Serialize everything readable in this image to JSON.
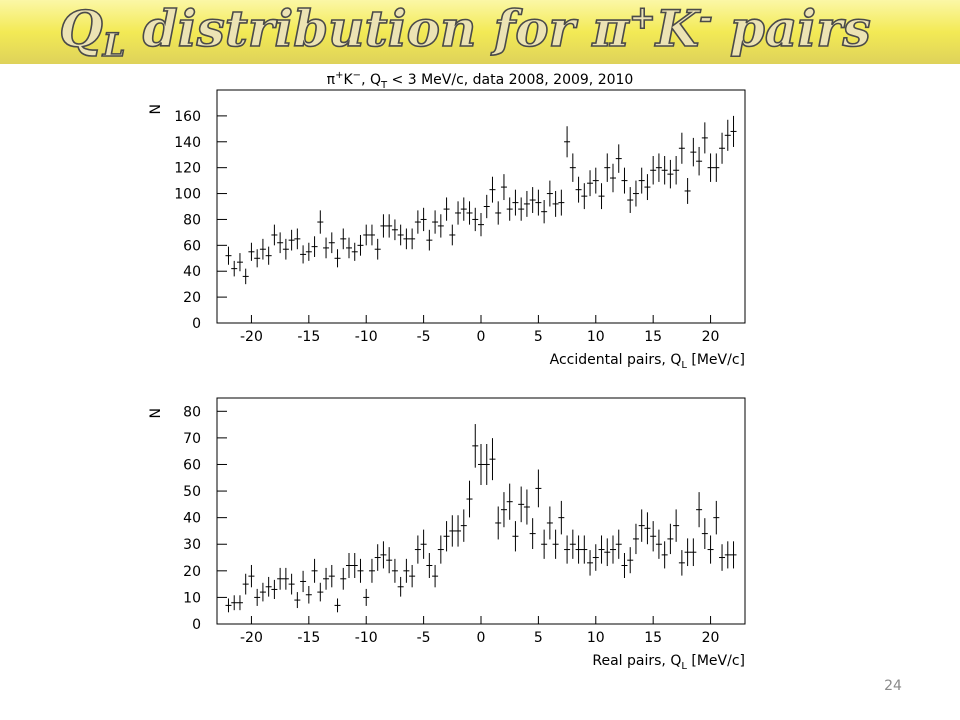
{
  "title_parts": [
    "Q",
    "L",
    " distribution for π",
    "+",
    "K",
    "-",
    " pairs"
  ],
  "page_number": "24",
  "chart_data": [
    {
      "type": "errorbar",
      "subtitle_parts": [
        "π",
        "+",
        "K",
        "−",
        ", Q",
        "T",
        " < 3 MeV/c, data 2008, 2009, 2010"
      ],
      "ylabel": "N",
      "xlabel_parts": [
        "Accidental pairs, Q",
        "L",
        " [MeV/c]"
      ],
      "xlim": [
        -23,
        23
      ],
      "xticks": [
        -20,
        -15,
        -10,
        -5,
        0,
        5,
        10,
        15,
        20
      ],
      "ylim": [
        0,
        180
      ],
      "yticks": [
        0,
        20,
        40,
        60,
        80,
        100,
        120,
        140,
        160
      ],
      "color": "#000000",
      "x": [
        -22,
        -21.5,
        -21,
        -20.5,
        -20,
        -19.5,
        -19,
        -18.5,
        -18,
        -17.5,
        -17,
        -16.5,
        -16,
        -15.5,
        -15,
        -14.5,
        -14,
        -13.5,
        -13,
        -12.5,
        -12,
        -11.5,
        -11,
        -10.5,
        -10,
        -9.5,
        -9,
        -8.5,
        -8,
        -7.5,
        -7,
        -6.5,
        -6,
        -5.5,
        -5,
        -4.5,
        -4,
        -3.5,
        -3,
        -2.5,
        -2,
        -1.5,
        -1,
        -0.5,
        0,
        0.5,
        1,
        1.5,
        2,
        2.5,
        3,
        3.5,
        4,
        4.5,
        5,
        5.5,
        6,
        6.5,
        7,
        7.5,
        8,
        8.5,
        9,
        9.5,
        10,
        10.5,
        11,
        11.5,
        12,
        12.5,
        13,
        13.5,
        14,
        14.5,
        15,
        15.5,
        16,
        16.5,
        17,
        17.5,
        18,
        18.5,
        19,
        19.5,
        20,
        20.5,
        21,
        21.5,
        22
      ],
      "values": [
        52,
        42,
        47,
        36,
        55,
        50,
        57,
        52,
        68,
        62,
        57,
        64,
        65,
        53,
        55,
        59,
        78,
        58,
        62,
        50,
        65,
        58,
        55,
        60,
        68,
        68,
        57,
        75,
        75,
        72,
        68,
        65,
        65,
        78,
        80,
        64,
        78,
        75,
        88,
        68,
        85,
        88,
        85,
        80,
        76,
        90,
        103,
        85,
        105,
        88,
        93,
        88,
        92,
        95,
        93,
        86,
        100,
        92,
        93,
        140,
        120,
        103,
        98,
        108,
        110,
        98,
        120,
        112,
        127,
        110,
        95,
        100,
        110,
        105,
        118,
        120,
        118,
        115,
        118,
        135,
        102,
        132,
        125,
        143,
        120,
        120,
        135,
        145,
        148
      ],
      "errors": [
        7,
        6,
        7,
        6,
        7,
        7,
        8,
        7,
        8,
        8,
        8,
        8,
        8,
        7,
        7,
        8,
        9,
        8,
        8,
        7,
        8,
        8,
        7,
        8,
        8,
        8,
        8,
        9,
        9,
        8,
        8,
        8,
        8,
        9,
        9,
        8,
        9,
        9,
        9,
        8,
        9,
        9,
        9,
        9,
        9,
        9,
        10,
        9,
        10,
        9,
        10,
        9,
        10,
        10,
        10,
        9,
        10,
        10,
        10,
        12,
        11,
        10,
        10,
        10,
        10,
        10,
        11,
        11,
        11,
        10,
        10,
        10,
        10,
        10,
        11,
        11,
        11,
        11,
        11,
        12,
        10,
        11,
        11,
        12,
        11,
        11,
        12,
        12,
        12
      ]
    },
    {
      "type": "errorbar",
      "ylabel": "N",
      "xlabel_parts": [
        "Real pairs, Q",
        "L",
        " [MeV/c]"
      ],
      "xlim": [
        -23,
        23
      ],
      "xticks": [
        -20,
        -15,
        -10,
        -5,
        0,
        5,
        10,
        15,
        20
      ],
      "ylim": [
        0,
        85
      ],
      "yticks": [
        0,
        10,
        20,
        30,
        40,
        50,
        60,
        70,
        80
      ],
      "color": "#000000",
      "x": [
        -22,
        -21.5,
        -21,
        -20.5,
        -20,
        -19.5,
        -19,
        -18.5,
        -18,
        -17.5,
        -17,
        -16.5,
        -16,
        -15.5,
        -15,
        -14.5,
        -14,
        -13.5,
        -13,
        -12.5,
        -12,
        -11.5,
        -11,
        -10.5,
        -10,
        -9.5,
        -9,
        -8.5,
        -8,
        -7.5,
        -7,
        -6.5,
        -6,
        -5.5,
        -5,
        -4.5,
        -4,
        -3.5,
        -3,
        -2.5,
        -2,
        -1.5,
        -1,
        -0.5,
        0,
        0.5,
        1,
        1.5,
        2,
        2.5,
        3,
        3.5,
        4,
        4.5,
        5,
        5.5,
        6,
        6.5,
        7,
        7.5,
        8,
        8.5,
        9,
        9.5,
        10,
        10.5,
        11,
        11.5,
        12,
        12.5,
        13,
        13.5,
        14,
        14.5,
        15,
        15.5,
        16,
        16.5,
        17,
        17.5,
        18,
        18.5,
        19,
        19.5,
        20,
        20.5,
        21,
        21.5,
        22
      ],
      "values": [
        7,
        8,
        8,
        15,
        18,
        10,
        12,
        14,
        13,
        17,
        17,
        15,
        9,
        16,
        11,
        20,
        12,
        17,
        18,
        7,
        17,
        22,
        22,
        20,
        10,
        20,
        25,
        26,
        24,
        20,
        14,
        20,
        18,
        28,
        30,
        22,
        18,
        28,
        33,
        35,
        35,
        37,
        47,
        67,
        60,
        60,
        62,
        38,
        43,
        46,
        33,
        45,
        44,
        34,
        51,
        30,
        38,
        30,
        40,
        28,
        30,
        28,
        28,
        23,
        25,
        28,
        27,
        28,
        30,
        22,
        24,
        32,
        37,
        36,
        33,
        30,
        26,
        32,
        37,
        23,
        27,
        27,
        43,
        34,
        28,
        40,
        25,
        26,
        26
      ],
      "errors": [
        2.6,
        2.8,
        2.8,
        3.9,
        4.2,
        3.2,
        3.5,
        3.7,
        3.6,
        4.1,
        4.1,
        3.9,
        3,
        4,
        3.3,
        4.5,
        3.5,
        4.1,
        4.2,
        2.6,
        4.1,
        4.7,
        4.7,
        4.5,
        3.2,
        4.5,
        5,
        5.1,
        4.9,
        4.5,
        3.7,
        4.5,
        4.2,
        5.3,
        5.5,
        4.7,
        4.2,
        5.3,
        5.7,
        5.9,
        5.9,
        6.1,
        6.9,
        8.2,
        7.7,
        7.7,
        7.9,
        6.2,
        6.6,
        6.8,
        5.7,
        6.7,
        6.6,
        5.8,
        7.1,
        5.5,
        6.2,
        5.5,
        6.3,
        5.3,
        5.5,
        5.3,
        5.3,
        4.8,
        5,
        5.3,
        5.2,
        5.3,
        5.5,
        4.7,
        4.9,
        5.7,
        6.1,
        6,
        5.7,
        5.5,
        5.1,
        5.7,
        6.1,
        4.8,
        5.2,
        5.2,
        6.6,
        5.8,
        5.3,
        6.3,
        5,
        5.1,
        5.1
      ]
    }
  ]
}
